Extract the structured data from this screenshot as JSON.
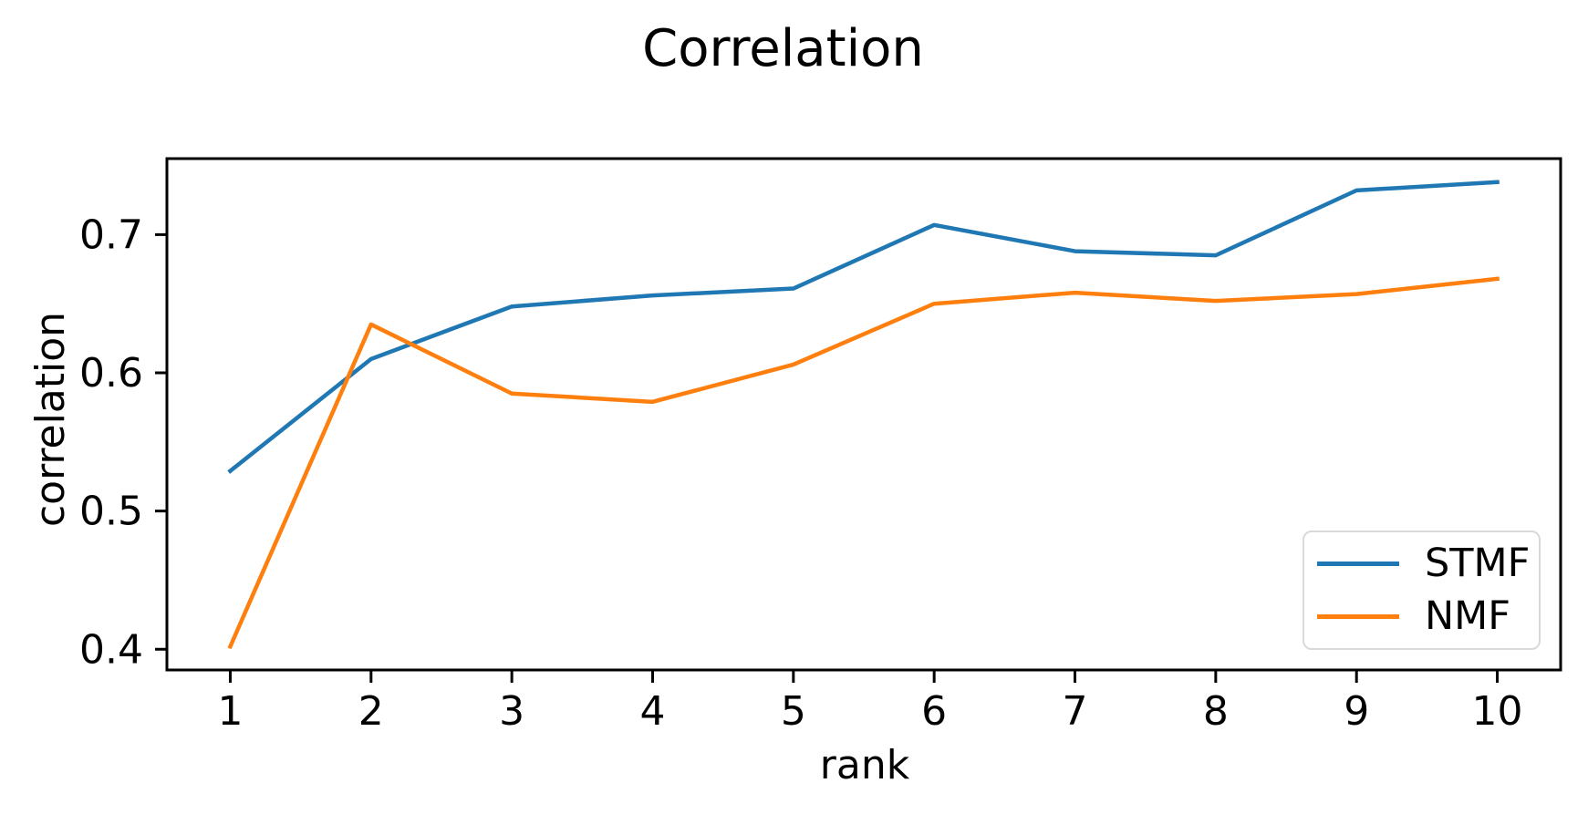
{
  "title": "Correlation",
  "axis_color": "#000000",
  "background_color": "#ffffff",
  "legend": {
    "border_color": "#d9d9d9",
    "position": "lower right",
    "entries": [
      {
        "label": "STMF",
        "color": "#1f77b4"
      },
      {
        "label": "NMF",
        "color": "#ff7f0e"
      }
    ]
  },
  "chart_data": {
    "type": "line",
    "title": "Correlation",
    "xlabel": "rank",
    "ylabel": "correlation",
    "grid": false,
    "legend_position": "lower right",
    "x": [
      1,
      2,
      3,
      4,
      5,
      6,
      7,
      8,
      9,
      10
    ],
    "x_ticks": [
      1,
      2,
      3,
      4,
      5,
      6,
      7,
      8,
      9,
      10
    ],
    "y_ticks": [
      0.4,
      0.5,
      0.6,
      0.7
    ],
    "xlim": [
      0.55,
      10.45
    ],
    "ylim": [
      0.385,
      0.755
    ],
    "series": [
      {
        "name": "STMF",
        "color": "#1f77b4",
        "values": [
          0.529,
          0.61,
          0.648,
          0.656,
          0.661,
          0.707,
          0.688,
          0.685,
          0.732,
          0.738
        ]
      },
      {
        "name": "NMF",
        "color": "#ff7f0e",
        "values": [
          0.402,
          0.635,
          0.585,
          0.579,
          0.606,
          0.65,
          0.658,
          0.652,
          0.657,
          0.668
        ]
      }
    ]
  }
}
